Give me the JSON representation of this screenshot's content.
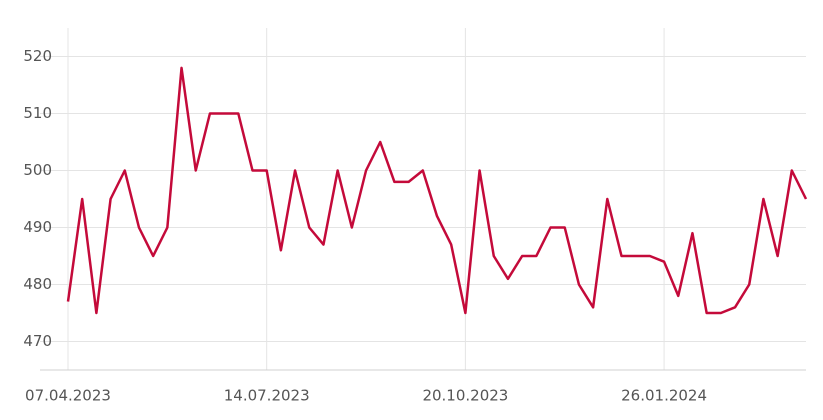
{
  "chart_data": {
    "type": "line",
    "categories": [
      "07.04.2023",
      null,
      null,
      null,
      null,
      null,
      null,
      null,
      null,
      null,
      null,
      null,
      null,
      null,
      "14.07.2023",
      null,
      null,
      null,
      null,
      null,
      null,
      null,
      null,
      null,
      null,
      null,
      null,
      null,
      "20.10.2023",
      null,
      null,
      null,
      null,
      null,
      null,
      null,
      null,
      null,
      null,
      null,
      null,
      null,
      "26.01.2024",
      null,
      null,
      null,
      null,
      null,
      null,
      null,
      null,
      null,
      null
    ],
    "series": [
      {
        "color": "#c40a3a",
        "values": [
          477,
          495,
          475,
          495,
          500,
          490,
          485,
          490,
          518,
          500,
          510,
          510,
          510,
          500,
          500,
          486,
          500,
          490,
          487,
          500,
          490,
          500,
          505,
          498,
          498,
          500,
          492,
          487,
          475,
          500,
          485,
          481,
          485,
          485,
          490,
          490,
          480,
          476,
          495,
          485,
          485,
          485,
          484,
          478,
          489,
          475,
          475,
          476,
          480,
          495,
          485,
          500,
          495
        ]
      }
    ],
    "ylim": [
      465,
      525
    ],
    "yticks": [
      470,
      480,
      490,
      500,
      510,
      520
    ],
    "grid": true
  }
}
